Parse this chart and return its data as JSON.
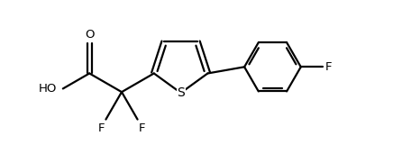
{
  "background": "#ffffff",
  "line_color": "#000000",
  "line_width": 1.6,
  "font_size": 9.5,
  "figsize": [
    4.36,
    1.61
  ],
  "dpi": 100,
  "xlim": [
    0.0,
    9.5
  ],
  "ylim": [
    0.5,
    4.2
  ]
}
